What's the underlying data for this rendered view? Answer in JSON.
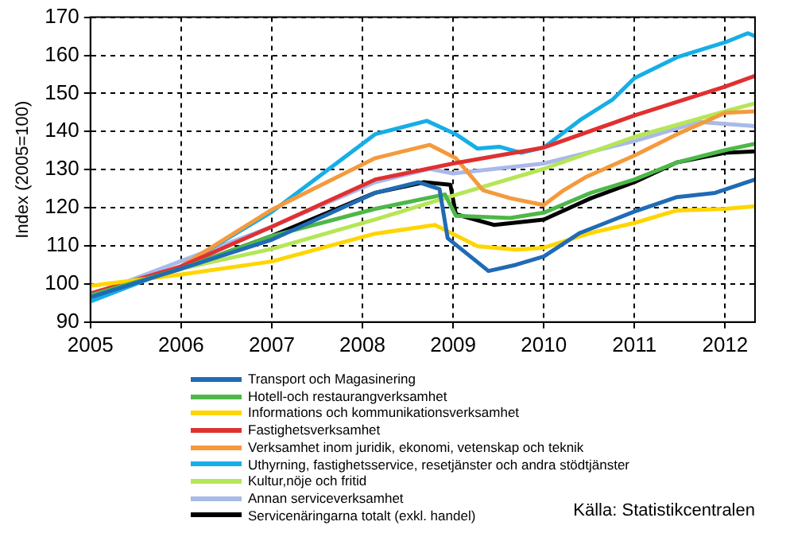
{
  "chart_data": {
    "type": "line",
    "ylabel": "Index (2005=100)",
    "xlim": [
      2005,
      2012.33
    ],
    "xticks": [
      2005,
      2006,
      2007,
      2008,
      2009,
      2010,
      2011,
      2012
    ],
    "ylim": [
      90,
      170
    ],
    "yticks": [
      90,
      100,
      110,
      120,
      130,
      140,
      150,
      160,
      170
    ],
    "grid": true,
    "legend": "bottom",
    "marker": "none",
    "line_style": "solid",
    "annotations": [
      "Källa: Statistikcentralen"
    ],
    "series": [
      {
        "name": "Transport och Magasinering",
        "color": "#1f6bb5",
        "x": [
          2005,
          2006,
          2007,
          2008.14,
          2008.62,
          2008.85,
          2008.94,
          2009.39,
          2009.69,
          2010,
          2010.4,
          2011,
          2011.47,
          2011.89,
          2012.33
        ],
        "values": [
          96.5,
          104,
          111.6,
          123.9,
          126.7,
          124.9,
          112,
          103.4,
          105,
          107.2,
          113.4,
          119,
          122.8,
          123.9,
          127.4
        ]
      },
      {
        "name": "Hotell-och restaurangverksamhet",
        "color": "#4db848",
        "x": [
          2005,
          2006,
          2007,
          2008.14,
          2008.91,
          2009.03,
          2009.63,
          2010,
          2010.52,
          2011,
          2011.47,
          2012,
          2012.33
        ],
        "values": [
          97,
          104,
          112.6,
          119.7,
          123.5,
          117.9,
          117.3,
          118.7,
          123.9,
          127.4,
          131.9,
          135.1,
          136.8
        ]
      },
      {
        "name": "Informations och kommunikationsverksamhet",
        "color": "#ffd500",
        "x": [
          2005,
          2006,
          2007,
          2008.14,
          2008.8,
          2009.27,
          2009.69,
          2010,
          2010.52,
          2011,
          2011.47,
          2012,
          2012.33
        ],
        "values": [
          99.5,
          102.5,
          105.9,
          113.2,
          115.5,
          109.9,
          109,
          109.5,
          113.4,
          116,
          119.3,
          119.7,
          120.4
        ]
      },
      {
        "name": "Fastighetsverksamhet",
        "color": "#e03030",
        "x": [
          2005,
          2006,
          2007,
          2008.14,
          2009,
          2010,
          2011,
          2012,
          2012.33
        ],
        "values": [
          97.5,
          104.6,
          115,
          127.4,
          131.6,
          135.8,
          144.2,
          151.8,
          154.6
        ]
      },
      {
        "name": "Verksamhet inom juridik, ekonomi, vetenskap och teknik",
        "color": "#f59a3c",
        "x": [
          2005,
          2006,
          2007,
          2008.14,
          2008.74,
          2009.03,
          2009.33,
          2009.63,
          2010,
          2010.22,
          2010.46,
          2011,
          2011.47,
          2012,
          2012.33
        ],
        "values": [
          97,
          104.6,
          119.5,
          133,
          136.5,
          133,
          124.6,
          122.5,
          120.7,
          124.6,
          128,
          133.7,
          139.3,
          144.9,
          145.3
        ]
      },
      {
        "name": "Uthyrning, fastighetsservice, resetjänster och andra stödtjänster",
        "color": "#16aee6",
        "x": [
          2005,
          2006,
          2007,
          2008.14,
          2008.71,
          2009.03,
          2009.27,
          2009.51,
          2009.75,
          2010,
          2010.4,
          2010.76,
          2011,
          2011.47,
          2012,
          2012.25,
          2012.33
        ],
        "values": [
          95.4,
          104.6,
          118.9,
          139.3,
          142.8,
          139.3,
          135.5,
          136,
          134.4,
          135.8,
          143,
          148.4,
          154,
          159.5,
          163.4,
          165.8,
          165
        ]
      },
      {
        "name": "Kultur,nöje och fritid",
        "color": "#b5e655",
        "x": [
          2005,
          2006,
          2007,
          2008.14,
          2009,
          2010,
          2011,
          2012,
          2012.33
        ],
        "values": [
          97,
          104,
          109.2,
          116.9,
          123.2,
          130.2,
          138.6,
          145.3,
          147.4
        ]
      },
      {
        "name": "Annan serviceverksamhet",
        "color": "#a9b9ea",
        "x": [
          2005,
          2007,
          2008.14,
          2008.74,
          2009,
          2010,
          2011,
          2011.71,
          2012.33
        ],
        "values": [
          97,
          115,
          126.7,
          130.2,
          129,
          131.6,
          137.5,
          142.5,
          141.4
        ]
      },
      {
        "name": "Servicenäringarna totalt (exkl. handel)",
        "color": "#000000",
        "x": [
          2005,
          2006,
          2007,
          2008.14,
          2008.68,
          2008.97,
          2009.03,
          2009.45,
          2010,
          2010.52,
          2011,
          2011.47,
          2012,
          2012.33
        ],
        "values": [
          96.8,
          104,
          112.6,
          123.9,
          126.7,
          126,
          118.3,
          115.5,
          116.9,
          122.5,
          126.7,
          131.9,
          134.4,
          134.8
        ]
      }
    ]
  }
}
